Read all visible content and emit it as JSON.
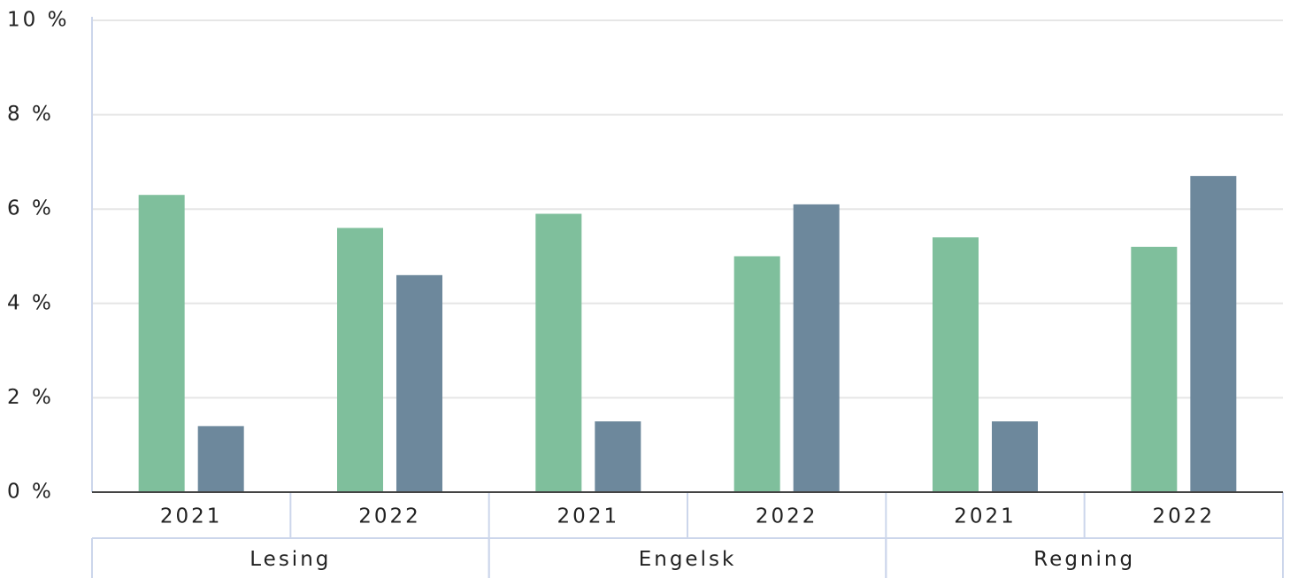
{
  "chart_data": {
    "type": "bar",
    "groups": [
      {
        "name": "Lesing",
        "categories": [
          "2021",
          "2022"
        ]
      },
      {
        "name": "Engelsk",
        "categories": [
          "2021",
          "2022"
        ]
      },
      {
        "name": "Regning",
        "categories": [
          "2021",
          "2022"
        ]
      }
    ],
    "series": [
      {
        "color": "#7fbf9c",
        "values": [
          6.3,
          5.6,
          5.9,
          5.0,
          5.4,
          5.2
        ]
      },
      {
        "color": "#6d889c",
        "values": [
          1.4,
          4.6,
          1.5,
          6.1,
          1.5,
          6.7
        ]
      }
    ],
    "ylim": [
      0,
      10
    ],
    "yticks": [
      {
        "value": 0,
        "label": "0 %"
      },
      {
        "value": 2,
        "label": "2 %"
      },
      {
        "value": 4,
        "label": "4 %"
      },
      {
        "value": 6,
        "label": "6 %"
      },
      {
        "value": 8,
        "label": "8 %"
      },
      {
        "value": 10,
        "label": "10 %"
      }
    ],
    "grid": true
  }
}
